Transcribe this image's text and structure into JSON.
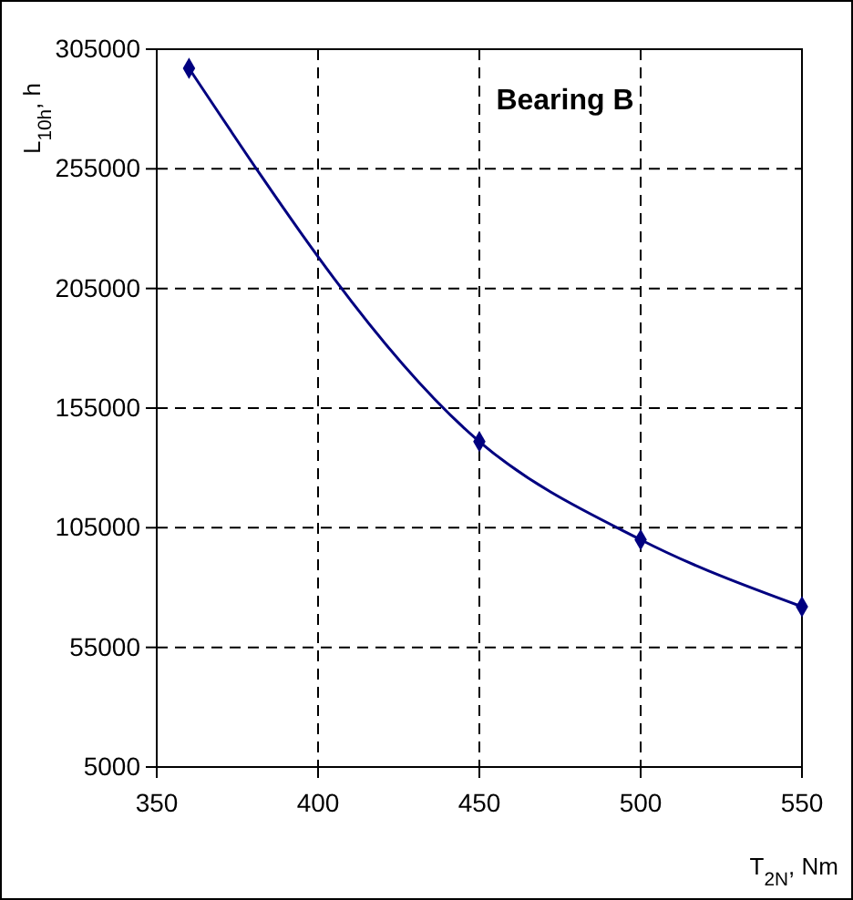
{
  "chart_data": {
    "type": "line",
    "title": "Bearing B",
    "xlabel": "T$_{2N}$, Nm",
    "ylabel": "L$_{10h}$, h",
    "x": [
      360,
      450,
      500,
      550
    ],
    "series": [
      {
        "color": "#000080",
        "values": [
          297000,
          141000,
          100000,
          72000
        ]
      }
    ],
    "xlim": [
      350,
      550
    ],
    "xticks": [
      350,
      400,
      450,
      500,
      550
    ],
    "ylim": [
      5000,
      305000
    ],
    "yticks": [
      5000,
      55000,
      105000,
      155000,
      205000,
      255000,
      305000
    ],
    "grid": true,
    "marker": "diamond",
    "line_style": "solid"
  }
}
